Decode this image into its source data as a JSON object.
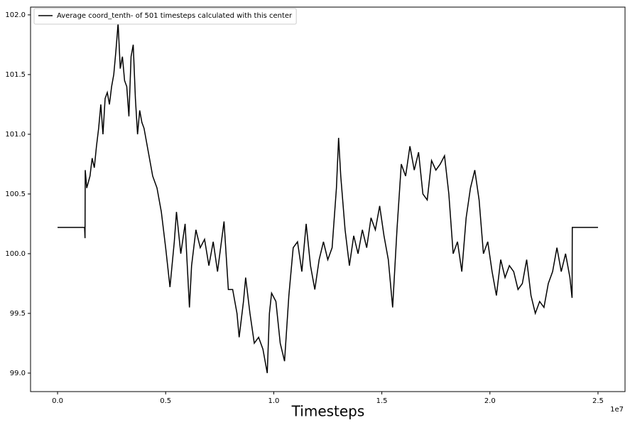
{
  "chart_data": {
    "type": "line",
    "xlabel": "Timesteps",
    "x_offset_label": "1e7",
    "xlim": [
      -0.125,
      2.625
    ],
    "ylim": [
      98.845,
      102.065
    ],
    "xticks": [
      {
        "value": 0,
        "label": "0.0"
      },
      0.5,
      {
        "value": 1,
        "label": "1.0"
      },
      1.5,
      {
        "value": 2,
        "label": "2.0"
      },
      2.5
    ],
    "yticks": [
      {
        "value": 99,
        "label": "99.0"
      },
      99.5,
      {
        "value": 100,
        "label": "100.0"
      },
      100.5,
      {
        "value": 101,
        "label": "101.0"
      },
      101.5,
      {
        "value": 102,
        "label": "102.0"
      }
    ],
    "grid": false,
    "legend_position": "upper-left",
    "series": [
      {
        "name": "Average coord_tenth- of 501 timesteps calculated with this center",
        "color": "#000000",
        "x": [
          0,
          0.125,
          0.127,
          0.128,
          0.135,
          0.15,
          0.16,
          0.17,
          0.18,
          0.19,
          0.2,
          0.21,
          0.22,
          0.23,
          0.24,
          0.25,
          0.26,
          0.27,
          0.28,
          0.29,
          0.3,
          0.31,
          0.32,
          0.33,
          0.34,
          0.35,
          0.36,
          0.37,
          0.38,
          0.39,
          0.4,
          0.42,
          0.44,
          0.46,
          0.48,
          0.5,
          0.52,
          0.54,
          0.55,
          0.57,
          0.59,
          0.61,
          0.62,
          0.64,
          0.66,
          0.68,
          0.7,
          0.72,
          0.74,
          0.77,
          0.79,
          0.81,
          0.83,
          0.84,
          0.86,
          0.87,
          0.89,
          0.91,
          0.93,
          0.95,
          0.97,
          0.98,
          0.99,
          1.01,
          1.03,
          1.05,
          1.07,
          1.09,
          1.11,
          1.13,
          1.15,
          1.17,
          1.19,
          1.21,
          1.23,
          1.25,
          1.27,
          1.29,
          1.3,
          1.31,
          1.33,
          1.35,
          1.37,
          1.39,
          1.41,
          1.43,
          1.45,
          1.47,
          1.49,
          1.51,
          1.53,
          1.55,
          1.57,
          1.59,
          1.61,
          1.63,
          1.65,
          1.67,
          1.69,
          1.71,
          1.73,
          1.75,
          1.77,
          1.79,
          1.81,
          1.83,
          1.85,
          1.87,
          1.89,
          1.91,
          1.93,
          1.95,
          1.97,
          1.99,
          2.01,
          2.03,
          2.05,
          2.07,
          2.09,
          2.11,
          2.13,
          2.15,
          2.17,
          2.19,
          2.21,
          2.23,
          2.25,
          2.27,
          2.29,
          2.31,
          2.33,
          2.35,
          2.37,
          2.38,
          2.381,
          2.5
        ],
        "values": [
          100.22,
          100.22,
          100.13,
          100.7,
          100.55,
          100.65,
          100.8,
          100.72,
          100.9,
          101.05,
          101.25,
          101.0,
          101.3,
          101.35,
          101.25,
          101.4,
          101.5,
          101.7,
          101.93,
          101.55,
          101.65,
          101.45,
          101.4,
          101.15,
          101.65,
          101.75,
          101.3,
          101.0,
          101.2,
          101.1,
          101.05,
          100.85,
          100.65,
          100.55,
          100.35,
          100.05,
          99.72,
          100.1,
          100.35,
          100.0,
          100.25,
          99.55,
          99.9,
          100.2,
          100.05,
          100.12,
          99.9,
          100.1,
          99.85,
          100.27,
          99.7,
          99.7,
          99.5,
          99.3,
          99.6,
          99.8,
          99.5,
          99.25,
          99.3,
          99.2,
          99.0,
          99.5,
          99.67,
          99.6,
          99.25,
          99.1,
          99.65,
          100.05,
          100.1,
          99.85,
          100.25,
          99.9,
          99.7,
          99.95,
          100.1,
          99.95,
          100.05,
          100.55,
          100.97,
          100.65,
          100.2,
          99.9,
          100.15,
          100.0,
          100.2,
          100.05,
          100.3,
          100.2,
          100.4,
          100.15,
          99.95,
          99.55,
          100.2,
          100.75,
          100.65,
          100.9,
          100.7,
          100.85,
          100.5,
          100.45,
          100.78,
          100.7,
          100.75,
          100.82,
          100.5,
          100.0,
          100.1,
          99.85,
          100.3,
          100.55,
          100.7,
          100.45,
          100.0,
          100.1,
          99.85,
          99.65,
          99.95,
          99.8,
          99.9,
          99.85,
          99.7,
          99.75,
          99.95,
          99.65,
          99.5,
          99.6,
          99.55,
          99.75,
          99.85,
          100.05,
          99.85,
          100.0,
          99.8,
          99.63,
          100.22,
          100.22
        ]
      }
    ]
  }
}
